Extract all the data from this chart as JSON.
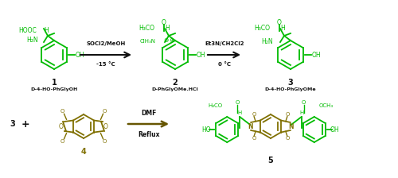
{
  "bg_color": "#ffffff",
  "green": "#00bb00",
  "dark_yellow": "#807000",
  "black": "#111111",
  "fig_width": 5.0,
  "fig_height": 2.24,
  "dpi": 100,
  "arrow1_label1": "SOCl2/MeOH",
  "arrow1_label2": "-15 °C",
  "arrow2_label1": "Et3N/CH2Cl2",
  "arrow2_label2": "0 °C",
  "arrow3_label1": "DMF",
  "arrow3_label2": "Reflux",
  "comp1_num": "1",
  "comp1_name": "D-4-HO-PhGlyOH",
  "comp2_num": "2",
  "comp2_name": "D-PhGlyOMe.HCl",
  "comp3_num": "3",
  "comp3_name": "D-4-HO-PhGlyOMe",
  "comp4_num": "4",
  "comp5_num": "5"
}
